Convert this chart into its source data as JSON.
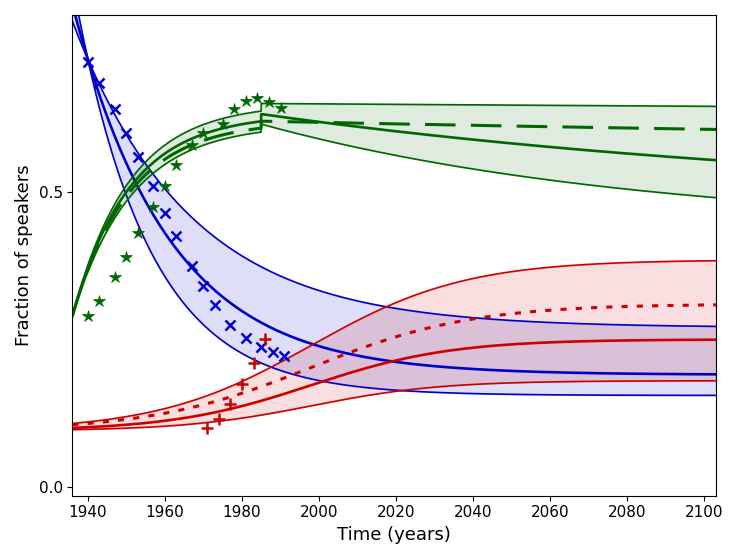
{
  "xlabel": "Time (years)",
  "ylabel": "Fraction of speakers",
  "xlim": [
    1936,
    2103
  ],
  "ylim": [
    -0.015,
    0.8
  ],
  "xticks": [
    1940,
    1960,
    1980,
    2000,
    2020,
    2040,
    2060,
    2080,
    2100
  ],
  "yticks": [
    0.0,
    0.5
  ],
  "blue_data_x": [
    1940,
    1943,
    1947,
    1950,
    1953,
    1957,
    1960,
    1963,
    1967,
    1970,
    1973,
    1977,
    1981,
    1985,
    1988,
    1991
  ],
  "blue_data_y": [
    0.72,
    0.685,
    0.64,
    0.6,
    0.56,
    0.51,
    0.465,
    0.425,
    0.375,
    0.34,
    0.308,
    0.275,
    0.252,
    0.237,
    0.228,
    0.222
  ],
  "green_data_x": [
    1940,
    1943,
    1947,
    1950,
    1953,
    1957,
    1960,
    1963,
    1967,
    1970,
    1975,
    1978,
    1981,
    1984,
    1987,
    1990
  ],
  "green_data_y": [
    0.29,
    0.315,
    0.355,
    0.39,
    0.43,
    0.475,
    0.51,
    0.545,
    0.58,
    0.6,
    0.615,
    0.64,
    0.655,
    0.66,
    0.652,
    0.643
  ],
  "red_data_x": [
    1971,
    1974,
    1977,
    1980,
    1983,
    1986
  ],
  "red_data_y": [
    0.1,
    0.115,
    0.14,
    0.175,
    0.21,
    0.25
  ],
  "blue_color": "#0000cc",
  "green_color": "#006600",
  "red_color": "#cc0000",
  "blue_fill_alpha": 0.13,
  "green_fill_alpha": 0.13,
  "red_fill_alpha": 0.13,
  "figsize": [
    7.4,
    5.59
  ],
  "dpi": 100
}
